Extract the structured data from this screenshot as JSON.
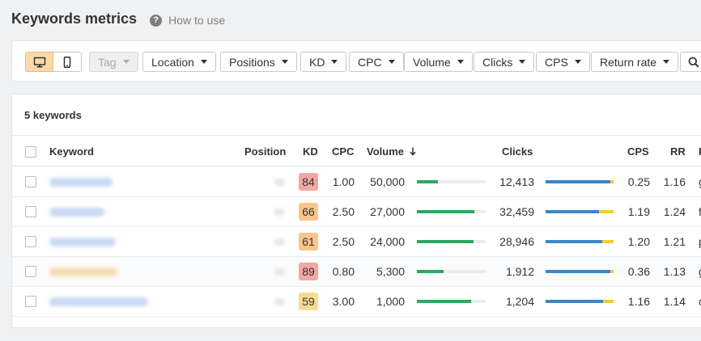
{
  "page": {
    "title": "Keywords metrics",
    "help_icon": "question-circle-icon",
    "help_label": "How to use"
  },
  "toolbar": {
    "device_icons": [
      "desktop-icon",
      "mobile-icon"
    ],
    "tag_label": "Tag",
    "filters": [
      "Location",
      "Positions",
      "KD",
      "CPC",
      "Volume",
      "Clicks",
      "CPS",
      "Return rate"
    ],
    "search_icon": "search-icon"
  },
  "table": {
    "count_label": "5 keywords",
    "columns": {
      "keyword": "Keyword",
      "position": "Position",
      "kd": "KD",
      "cpc": "CPC",
      "volume": "Volume",
      "volume_sort_icon": "arrow-down-icon",
      "clicks": "Clicks",
      "cps": "CPS",
      "rr": "RR",
      "extra": "P"
    },
    "colors": {
      "kd_high": "#f4a6a1",
      "kd_mid": "#f8c58a",
      "kd_lowmid": "#fad994",
      "volume_bar": "#2ba860",
      "clicks_paid": "#3a87c8",
      "clicks_organic": "#f5cd2c"
    },
    "rows": [
      {
        "kd": "84",
        "kd_color": "#f4a6a1",
        "cpc": "1.00",
        "volume": "50,000",
        "volume_fill": 0.3,
        "clicks": "12,413",
        "clicks_blue": 0.95,
        "cps": "0.25",
        "rr": "1.16",
        "extra": "g"
      },
      {
        "kd": "66",
        "kd_color": "#f8c58a",
        "cpc": "2.50",
        "volume": "27,000",
        "volume_fill": 0.84,
        "clicks": "32,459",
        "clicks_blue": 0.79,
        "cps": "1.19",
        "rr": "1.24",
        "extra": "f"
      },
      {
        "kd": "61",
        "kd_color": "#f8c58a",
        "cpc": "2.50",
        "volume": "24,000",
        "volume_fill": 0.82,
        "clicks": "28,946",
        "clicks_blue": 0.83,
        "cps": "1.20",
        "rr": "1.21",
        "extra": "p"
      },
      {
        "kd": "89",
        "kd_color": "#f4a6a1",
        "cpc": "0.80",
        "volume": "5,300",
        "volume_fill": 0.39,
        "clicks": "1,912",
        "clicks_blue": 0.95,
        "cps": "0.36",
        "rr": "1.13",
        "extra": "g"
      },
      {
        "kd": "59",
        "kd_color": "#fad994",
        "cpc": "3.00",
        "volume": "1,000",
        "volume_fill": 0.79,
        "clicks": "1,204",
        "clicks_blue": 0.84,
        "cps": "1.16",
        "rr": "1.14",
        "extra": "c"
      }
    ]
  }
}
